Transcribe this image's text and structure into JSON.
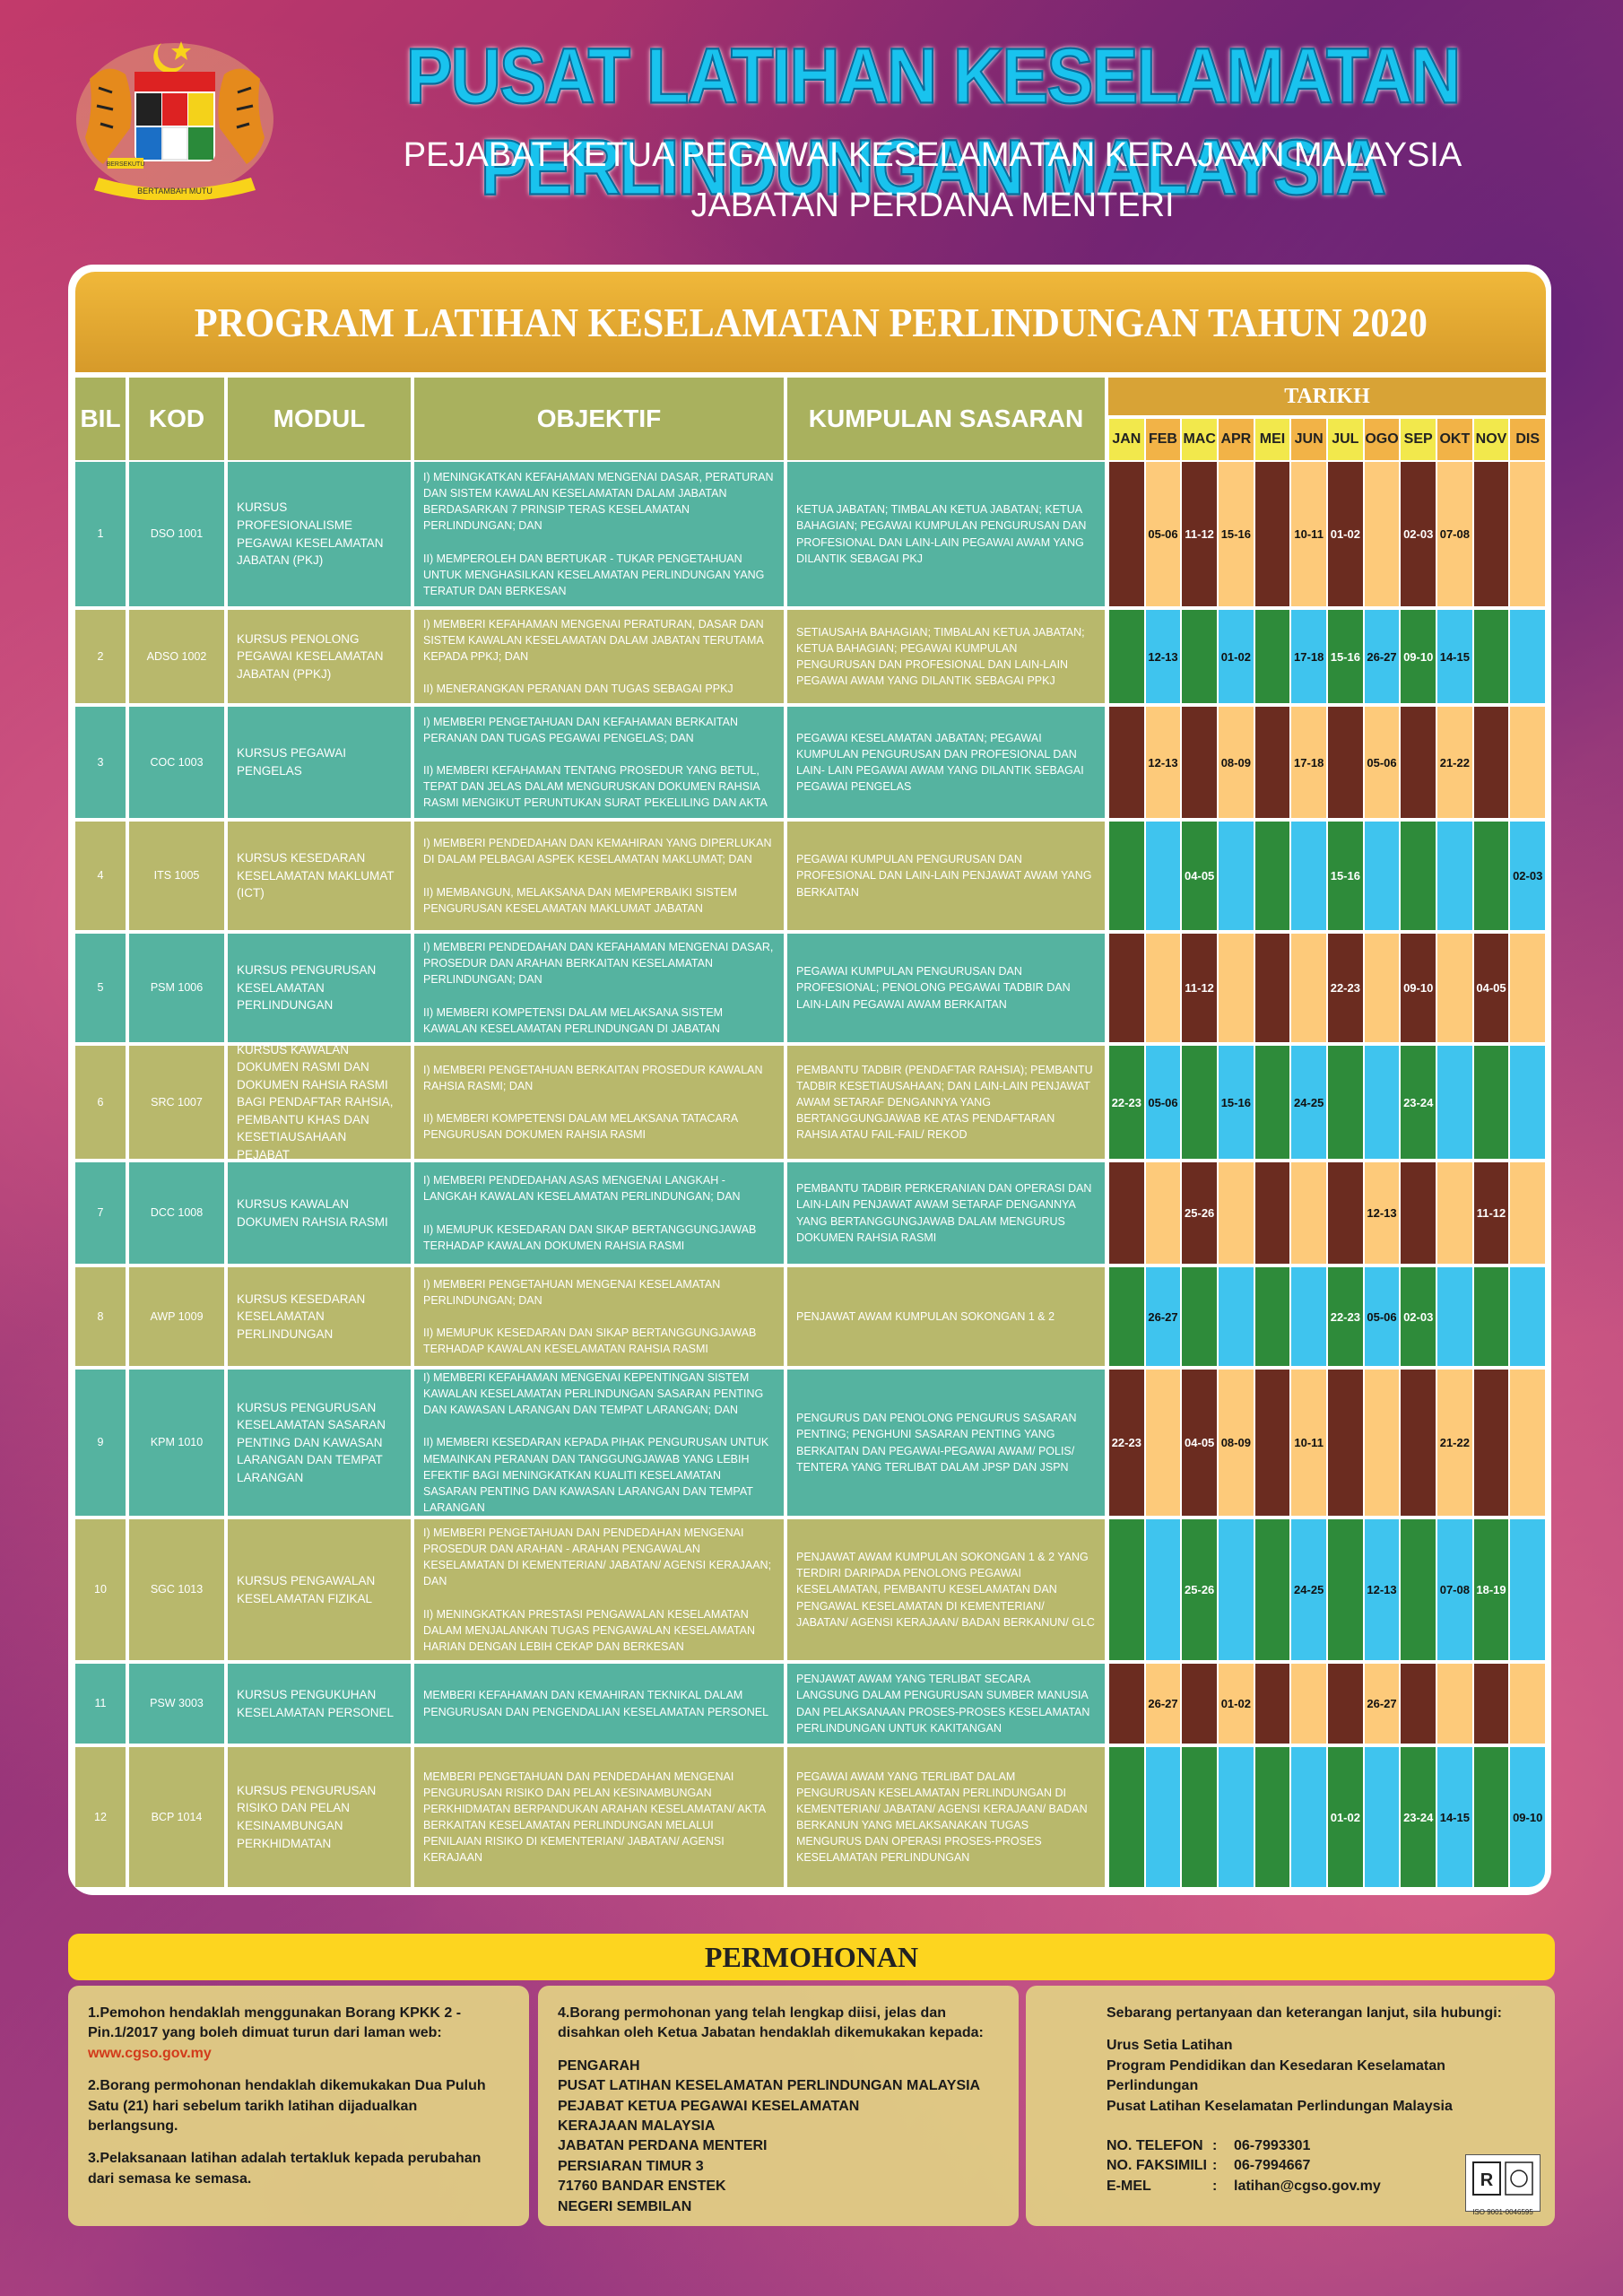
{
  "header": {
    "title": "PUSAT LATIHAN KESELAMATAN PERLINDUNGAN MALAYSIA",
    "subtitle1": "PEJABAT KETUA PEGAWAI KESELAMATAN KERAJAAN MALAYSIA",
    "subtitle2": "JABATAN PERDANA MENTERI",
    "crest_motto_left": "BERSEKUTU",
    "crest_motto_right": "BERTAMBAH MUTU"
  },
  "program_title": "PROGRAM LATIHAN KESELAMATAN PERLINDUNGAN TAHUN 2020",
  "table": {
    "headers": {
      "bil": "BIL",
      "kod": "KOD",
      "modul": "MODUL",
      "objektif": "OBJEKTIF",
      "kumpulan": "KUMPULAN SASARAN",
      "tarikh": "TARIKH"
    },
    "months": [
      "JAN",
      "FEB",
      "MAC",
      "APR",
      "MEI",
      "JUN",
      "JUL",
      "OGO",
      "SEP",
      "OKT",
      "NOV",
      "DIS"
    ],
    "rows": [
      {
        "bil": "1",
        "kod": "DSO 1001",
        "modul": "KURSUS PROFESIONALISME PEGAWAI KESELAMATAN JABATAN (PKJ)",
        "objektif": "I) MENINGKATKAN KEFAHAMAN MENGENAI DASAR, PERATURAN DAN SISTEM KAWALAN KESELAMATAN DALAM JABATAN BERDASARKAN 7 PRINSIP TERAS KESELAMATAN PERLINDUNGAN; DAN\n\nII) MEMPEROLEH DAN BERTUKAR - TUKAR PENGETAHUAN UNTUK MENGHASILKAN KESELAMATAN PERLINDUNGAN YANG TERATUR DAN BERKESAN",
        "kumpulan": "KETUA JABATAN; TIMBALAN KETUA JABATAN; KETUA BAHAGIAN; PEGAWAI KUMPULAN PENGURUSAN DAN PROFESIONAL DAN LAIN-LAIN PEGAWAI AWAM YANG DILANTIK SEBAGAI PKJ",
        "dates": [
          "",
          "05-06",
          "11-12",
          "15-16",
          "",
          "10-11",
          "01-02",
          "",
          "02-03",
          "07-08",
          "",
          ""
        ]
      },
      {
        "bil": "2",
        "kod": "ADSO 1002",
        "modul": "KURSUS PENOLONG PEGAWAI KESELAMATAN JABATAN (PPKJ)",
        "objektif": "I) MEMBERI KEFAHAMAN MENGENAI PERATURAN, DASAR DAN SISTEM KAWALAN KESELAMATAN DALAM JABATAN TERUTAMA KEPADA PPKJ; DAN\n\nII) MENERANGKAN PERANAN DAN TUGAS SEBAGAI PPKJ",
        "kumpulan": "SETIAUSAHA BAHAGIAN; TIMBALAN KETUA JABATAN; KETUA BAHAGIAN; PEGAWAI KUMPULAN PENGURUSAN DAN PROFESIONAL DAN LAIN-LAIN PEGAWAI AWAM YANG DILANTIK SEBAGAI PPKJ",
        "dates": [
          "",
          "12-13",
          "",
          "01-02",
          "",
          "17-18",
          "15-16",
          "26-27",
          "09-10",
          "14-15",
          "",
          ""
        ]
      },
      {
        "bil": "3",
        "kod": "COC 1003",
        "modul": "KURSUS PEGAWAI PENGELAS",
        "objektif": "I) MEMBERI  PENGETAHUAN DAN KEFAHAMAN BERKAITAN PERANAN DAN TUGAS PEGAWAI PENGELAS; DAN\n\nII) MEMBERI KEFAHAMAN TENTANG PROSEDUR YANG BETUL, TEPAT DAN JELAS DALAM MENGURUSKAN DOKUMEN RAHSIA RASMI MENGIKUT PERUNTUKAN SURAT PEKELILING DAN AKTA",
        "kumpulan": "PEGAWAI KESELAMATAN JABATAN; PEGAWAI KUMPULAN PENGURUSAN DAN PROFESIONAL DAN LAIN- LAIN PEGAWAI AWAM YANG DILANTIK SEBAGAI PEGAWAI PENGELAS",
        "dates": [
          "",
          "12-13",
          "",
          "08-09",
          "",
          "17-18",
          "",
          "05-06",
          "",
          "21-22",
          "",
          ""
        ]
      },
      {
        "bil": "4",
        "kod": "ITS 1005",
        "modul": "KURSUS KESEDARAN KESELAMATAN MAKLUMAT (ICT)",
        "objektif": "I) MEMBERI PENDEDAHAN DAN KEMAHIRAN YANG DIPERLUKAN DI DALAM PELBAGAI ASPEK KESELAMATAN MAKLUMAT; DAN\n\nII) MEMBANGUN, MELAKSANA DAN MEMPERBAIKI SISTEM PENGURUSAN KESELAMATAN MAKLUMAT JABATAN",
        "kumpulan": "PEGAWAI KUMPULAN PENGURUSAN DAN PROFESIONAL DAN  LAIN-LAIN PENJAWAT AWAM YANG BERKAITAN",
        "dates": [
          "",
          "",
          "04-05",
          "",
          "",
          "",
          "15-16",
          "",
          "",
          "",
          "",
          "02-03"
        ]
      },
      {
        "bil": "5",
        "kod": "PSM 1006",
        "modul": "KURSUS PENGURUSAN KESELAMATAN PERLINDUNGAN",
        "objektif": "I) MEMBERI PENDEDAHAN DAN KEFAHAMAN MENGENAI DASAR, PROSEDUR DAN ARAHAN BERKAITAN KESELAMATAN PERLINDUNGAN; DAN\n\nII) MEMBERI KOMPETENSI DALAM MELAKSANA SISTEM KAWALAN KESELAMATAN PERLINDUNGAN DI JABATAN",
        "kumpulan": "PEGAWAI KUMPULAN PENGURUSAN DAN PROFESIONAL; PENOLONG PEGAWAI TADBIR DAN LAIN-LAIN PEGAWAI AWAM BERKAITAN",
        "dates": [
          "",
          "",
          "11-12",
          "",
          "",
          "",
          "22-23",
          "",
          "09-10",
          "",
          "04-05",
          ""
        ]
      },
      {
        "bil": "6",
        "kod": "SRC 1007",
        "modul": "KURSUS KAWALAN DOKUMEN RASMI DAN DOKUMEN RAHSIA RASMI BAGI PENDAFTAR RAHSIA, PEMBANTU KHAS DAN KESETIAUSAHAAN PEJABAT",
        "objektif": "I) MEMBERI PENGETAHUAN BERKAITAN PROSEDUR KAWALAN RAHSIA RASMI; DAN\n\nII) MEMBERI KOMPETENSI DALAM MELAKSANA TATACARA PENGURUSAN DOKUMEN RAHSIA RASMI",
        "kumpulan": "PEMBANTU TADBIR (PENDAFTAR RAHSIA); PEMBANTU TADBIR KESETIAUSAHAAN; DAN LAIN-LAIN PENJAWAT AWAM SETARAF DENGANNYA YANG BERTANGGUNGJAWAB KE ATAS PENDAFTARAN RAHSIA ATAU FAIL-FAIL/ REKOD",
        "dates": [
          "22-23",
          "05-06",
          "",
          "15-16",
          "",
          "24-25",
          "",
          "",
          "23-24",
          "",
          "",
          ""
        ]
      },
      {
        "bil": "7",
        "kod": "DCC 1008",
        "modul": "KURSUS KAWALAN DOKUMEN RAHSIA RASMI",
        "objektif": "I) MEMBERI PENDEDAHAN ASAS MENGENAI LANGKAH - LANGKAH KAWALAN KESELAMATAN PERLINDUNGAN; DAN\n\nII) MEMUPUK KESEDARAN DAN SIKAP BERTANGGUNGJAWAB TERHADAP KAWALAN DOKUMEN RAHSIA RASMI",
        "kumpulan": "PEMBANTU TADBIR PERKERANIAN DAN OPERASI DAN LAIN-LAIN PENJAWAT AWAM SETARAF DENGANNYA YANG BERTANGGUNGJAWAB DALAM MENGURUS DOKUMEN RAHSIA RASMI",
        "dates": [
          "",
          "",
          "25-26",
          "",
          "",
          "",
          "",
          "12-13",
          "",
          "",
          "11-12",
          ""
        ]
      },
      {
        "bil": "8",
        "kod": "AWP 1009",
        "modul": "KURSUS KESEDARAN KESELAMATAN PERLINDUNGAN",
        "objektif": "I) MEMBERI PENGETAHUAN MENGENAI KESELAMATAN PERLINDUNGAN; DAN\n\nII) MEMUPUK KESEDARAN DAN SIKAP BERTANGGUNGJAWAB TERHADAP KAWALAN KESELAMATAN RAHSIA RASMI",
        "kumpulan": "PENJAWAT  AWAM  KUMPULAN SOKONGAN 1 & 2",
        "dates": [
          "",
          "26-27",
          "",
          "",
          "",
          "",
          "22-23",
          "05-06",
          "02-03",
          "",
          "",
          ""
        ]
      },
      {
        "bil": "9",
        "kod": "KPM 1010",
        "modul": "KURSUS PENGURUSAN KESELAMATAN SASARAN PENTING DAN KAWASAN LARANGAN DAN TEMPAT LARANGAN",
        "objektif": "I) MEMBERI KEFAHAMAN MENGENAI KEPENTINGAN SISTEM KAWALAN KESELAMATAN PERLINDUNGAN SASARAN PENTING DAN KAWASAN LARANGAN DAN TEMPAT LARANGAN; DAN\n\nII) MEMBERI KESEDARAN KEPADA PIHAK PENGURUSAN UNTUK MEMAINKAN PERANAN DAN TANGGUNGJAWAB YANG LEBIH EFEKTIF BAGI MENINGKATKAN KUALITI KESELAMATAN SASARAN PENTING DAN KAWASAN LARANGAN DAN TEMPAT LARANGAN",
        "kumpulan": "PENGURUS DAN PENOLONG PENGURUS SASARAN PENTING; PENGHUNI SASARAN PENTING YANG BERKAITAN DAN PEGAWAI-PEGAWAI AWAM/ POLIS/ TENTERA YANG TERLIBAT DALAM JPSP DAN JSPN",
        "dates": [
          "22-23",
          "",
          "04-05",
          "08-09",
          "",
          "10-11",
          "",
          "",
          "",
          "21-22",
          "",
          ""
        ]
      },
      {
        "bil": "10",
        "kod": "SGC 1013",
        "modul": "KURSUS PENGAWALAN KESELAMATAN FIZIKAL",
        "objektif": "I) MEMBERI PENGETAHUAN DAN PENDEDAHAN MENGENAI PROSEDUR DAN ARAHAN - ARAHAN PENGAWALAN KESELAMATAN DI KEMENTERIAN/ JABATAN/ AGENSI KERAJAAN; DAN\n\nII) MENINGKATKAN PRESTASI PENGAWALAN KESELAMATAN DALAM MENJALANKAN TUGAS PENGAWALAN KESELAMATAN HARIAN DENGAN LEBIH CEKAP DAN BERKESAN",
        "kumpulan": "PENJAWAT AWAM KUMPULAN SOKONGAN 1 & 2 YANG TERDIRI DARIPADA PENOLONG PEGAWAI KESELAMATAN, PEMBANTU KESELAMATAN DAN PENGAWAL KESELAMATAN DI KEMENTERIAN/ JABATAN/ AGENSI KERAJAAN/ BADAN BERKANUN/ GLC",
        "dates": [
          "",
          "",
          "25-26",
          "",
          "",
          "24-25",
          "",
          "12-13",
          "",
          "07-08",
          "18-19",
          ""
        ]
      },
      {
        "bil": "11",
        "kod": "PSW 3003",
        "modul": "KURSUS PENGUKUHAN KESELAMATAN PERSONEL",
        "objektif": "MEMBERI KEFAHAMAN DAN KEMAHIRAN TEKNIKAL DALAM PENGURUSAN DAN PENGENDALIAN KESELAMATAN PERSONEL",
        "kumpulan": "PENJAWAT AWAM YANG TERLIBAT SECARA LANGSUNG DALAM PENGURUSAN SUMBER MANUSIA DAN PELAKSANAAN PROSES-PROSES KESELAMATAN PERLINDUNGAN UNTUK KAKITANGAN",
        "dates": [
          "",
          "26-27",
          "",
          "01-02",
          "",
          "",
          "",
          "26-27",
          "",
          "",
          "",
          ""
        ]
      },
      {
        "bil": "12",
        "kod": "BCP 1014",
        "modul": "KURSUS PENGURUSAN RISIKO DAN PELAN KESINAMBUNGAN PERKHIDMATAN",
        "objektif": "MEMBERI PENGETAHUAN DAN PENDEDAHAN MENGENAI PENGURUSAN RISIKO DAN PELAN KESINAMBUNGAN PERKHIDMATAN BERPANDUKAN ARAHAN KESELAMATAN/ AKTA BERKAITAN KESELAMATAN PERLINDUNGAN MELALUI PENILAIAN RISIKO DI KEMENTERIAN/ JABATAN/ AGENSI KERAJAAN",
        "kumpulan": "PEGAWAI AWAM YANG TERLIBAT DALAM PENGURUSAN KESELAMATAN PERLINDUNGAN DI KEMENTERIAN/ JABATAN/ AGENSI KERAJAAN/ BADAN BERKANUN YANG MELAKSANAKAN TUGAS MENGURUS DAN OPERASI PROSES-PROSES KESELAMATAN PERLINDUNGAN",
        "dates": [
          "",
          "",
          "",
          "",
          "",
          "",
          "01-02",
          "",
          "23-24",
          "14-15",
          "",
          "09-10"
        ]
      }
    ]
  },
  "permohonan": {
    "title": "PERMOHONAN",
    "box1": {
      "p1_text": "1.Pemohon hendaklah menggunakan Borang KPKK 2 - Pin.1/2017 yang boleh dimuat turun dari laman web: ",
      "p1_link": "www.cgso.gov.my",
      "p2": "2.Borang permohonan hendaklah dikemukakan Dua Puluh Satu (21) hari sebelum tarikh latihan dijadualkan berlangsung.",
      "p3": "3.Pelaksanaan latihan adalah tertakluk kepada perubahan dari semasa ke semasa."
    },
    "box2": {
      "intro": "4.Borang permohonan yang telah lengkap diisi, jelas dan disahkan oleh Ketua Jabatan hendaklah dikemukakan kepada:",
      "address": [
        "PENGARAH",
        "PUSAT LATIHAN KESELAMATAN PERLINDUNGAN MALAYSIA",
        "PEJABAT KETUA PEGAWAI KESELAMATAN",
        "KERAJAAN MALAYSIA",
        "JABATAN PERDANA MENTERI",
        "PERSIARAN TIMUR 3",
        "71760 BANDAR ENSTEK",
        "NEGERI SEMBILAN"
      ]
    },
    "box3": {
      "intro": "Sebarang pertanyaan dan keterangan lanjut, sila hubungi:",
      "org": [
        "Urus Setia Latihan",
        "Program Pendidikan dan Kesedaran Keselamatan Perlindungan",
        "Pusat Latihan Keselamatan Perlindungan Malaysia"
      ],
      "tel_label": "NO. TELEFON",
      "tel": "06-7993301",
      "fax_label": "NO. FAKSIMILI",
      "fax": "06-7994667",
      "email_label": "E-MEL",
      "email": "latihan@cgso.gov.my",
      "iso_caption": "ISO 9001-0046595"
    }
  },
  "colors": {
    "row_teal": "#55b3a0",
    "row_olive": "#b8b86c",
    "bar_brown": "#6b2c20",
    "bar_peach": "#fdca7a",
    "bar_green": "#2e8b3a",
    "bar_cyan": "#3fc4ee",
    "banner": "#e6ad36",
    "permohonan_bar": "#fdd51f"
  }
}
